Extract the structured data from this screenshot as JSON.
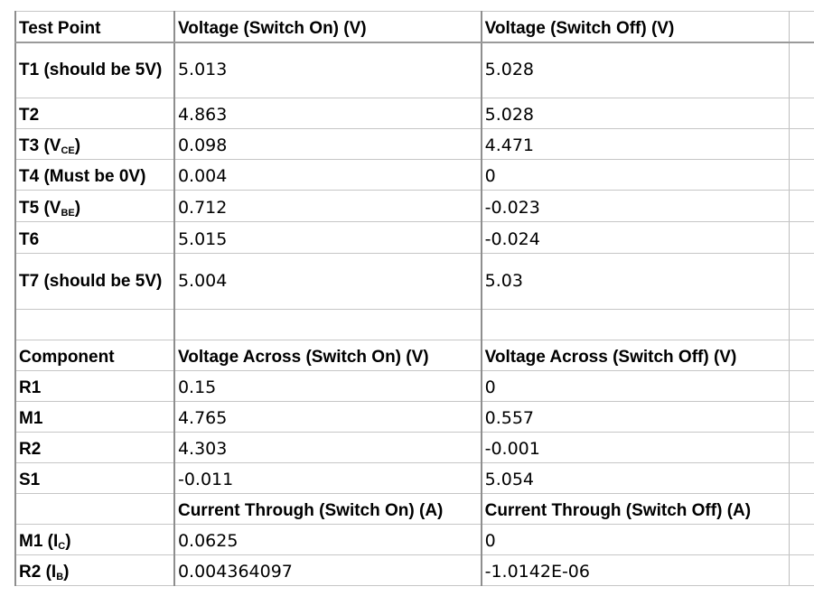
{
  "table1": {
    "headers": [
      "Test Point",
      "Voltage (Switch On) (V)",
      "Voltage (Switch Off) (V)"
    ],
    "rows": [
      {
        "label": "T1 (should be 5V)",
        "label_sub": "",
        "label_end": "",
        "on": "5.013",
        "off": "5.028"
      },
      {
        "label": "T2",
        "label_sub": "",
        "label_end": "",
        "on": "4.863",
        "off": "5.028"
      },
      {
        "label": "T3 (V",
        "label_sub": "CE",
        "label_end": ")",
        "on": "0.098",
        "off": "4.471"
      },
      {
        "label": "T4 (Must be 0V)",
        "label_sub": "",
        "label_end": "",
        "on": "0.004",
        "off": "0"
      },
      {
        "label": "T5 (V",
        "label_sub": "BE",
        "label_end": ")",
        "on": "0.712",
        "off": "-0.023"
      },
      {
        "label": "T6",
        "label_sub": "",
        "label_end": "",
        "on": "5.015",
        "off": "-0.024"
      },
      {
        "label": "T7 (should be 5V)",
        "label_sub": "",
        "label_end": "",
        "on": "5.004",
        "off": "5.03"
      }
    ]
  },
  "table2": {
    "headers": [
      "Component",
      "Voltage Across (Switch On) (V)",
      "Voltage Across (Switch Off) (V)"
    ],
    "rows": [
      {
        "label": "R1",
        "on": "0.15",
        "off": "0"
      },
      {
        "label": "M1",
        "on": "4.765",
        "off": "0.557"
      },
      {
        "label": "R2",
        "on": "4.303",
        "off": "-0.001"
      },
      {
        "label": "S1",
        "on": "-0.011",
        "off": "5.054"
      }
    ]
  },
  "table3": {
    "headers": [
      "",
      "Current Through (Switch On) (A)",
      "Current Through (Switch Off) (A)"
    ],
    "rows": [
      {
        "label": "M1 (I",
        "label_sub": "C",
        "label_end": ")",
        "on": "0.0625",
        "off": "0"
      },
      {
        "label": "R2 (I",
        "label_sub": "B",
        "label_end": ")",
        "on": "0.004364097",
        "off": "-1.0142E-06"
      }
    ]
  }
}
